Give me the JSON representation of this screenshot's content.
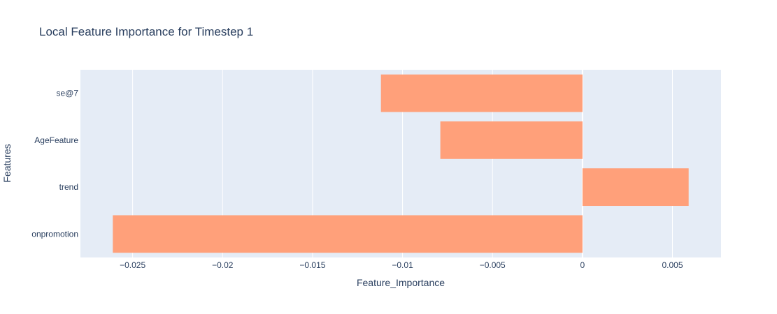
{
  "chart_data": {
    "type": "bar",
    "orientation": "horizontal",
    "title": "Local Feature Importance for Timestep 1",
    "xlabel": "Feature_Importance",
    "ylabel": "Features",
    "categories": [
      "se@7",
      "AgeFeature",
      "trend",
      "onpromotion"
    ],
    "values": [
      -0.0112,
      -0.0079,
      0.0059,
      -0.0261
    ],
    "xlim": [
      -0.0279,
      0.0077
    ],
    "x_ticks": [
      -0.025,
      -0.02,
      -0.015,
      -0.01,
      -0.005,
      0,
      0.005
    ],
    "x_tick_labels": [
      "−0.025",
      "−0.02",
      "−0.015",
      "−0.01",
      "−0.005",
      "0",
      "0.005"
    ],
    "grid": true,
    "colors": {
      "bar": "#ffa07a",
      "plot_bg": "#e5ecf6",
      "grid": "#ffffff",
      "text": "#2a3f5f"
    }
  }
}
